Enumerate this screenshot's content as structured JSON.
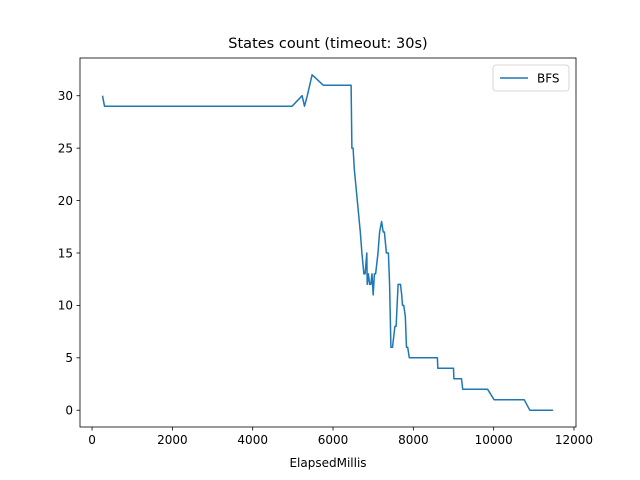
{
  "chart_data": {
    "type": "line",
    "title": "States count (timeout: 30s)",
    "xlabel": "ElapsedMillis",
    "ylabel": "",
    "xlim": [
      -300,
      12050
    ],
    "ylim": [
      -1.6,
      33.6
    ],
    "xticks": [
      0,
      2000,
      4000,
      6000,
      8000,
      10000,
      12000
    ],
    "yticks": [
      0,
      5,
      10,
      15,
      20,
      25,
      30
    ],
    "grid": false,
    "legend_position": "top-right",
    "series": [
      {
        "name": "BFS",
        "color": "#1f77b4",
        "x": [
          260,
          310,
          4980,
          5230,
          5290,
          5360,
          5480,
          5760,
          6450,
          6470,
          6500,
          6530,
          6580,
          6630,
          6680,
          6720,
          6770,
          6800,
          6840,
          6850,
          6880,
          6910,
          6940,
          6970,
          7000,
          7030,
          7060,
          7090,
          7120,
          7160,
          7210,
          7250,
          7280,
          7330,
          7380,
          7410,
          7440,
          7480,
          7510,
          7540,
          7570,
          7620,
          7680,
          7710,
          7730,
          7760,
          7800,
          7830,
          7860,
          7900,
          7980,
          8600,
          8610,
          9000,
          9010,
          9200,
          9230,
          9850,
          10010,
          10760,
          10900,
          11480
        ],
        "y": [
          30,
          29,
          29,
          30,
          29,
          30,
          32,
          31,
          31,
          25,
          25,
          23,
          21,
          19,
          17,
          15,
          13,
          13,
          15,
          12,
          13,
          12,
          12,
          13,
          11,
          13,
          13,
          14,
          15,
          17,
          18,
          17,
          17,
          15,
          15,
          12,
          6,
          6,
          7,
          8,
          8,
          12,
          12,
          11,
          10,
          10,
          9,
          6,
          6,
          5,
          5,
          5,
          4,
          4,
          3,
          3,
          2,
          2,
          1,
          1,
          0,
          0
        ]
      }
    ]
  }
}
